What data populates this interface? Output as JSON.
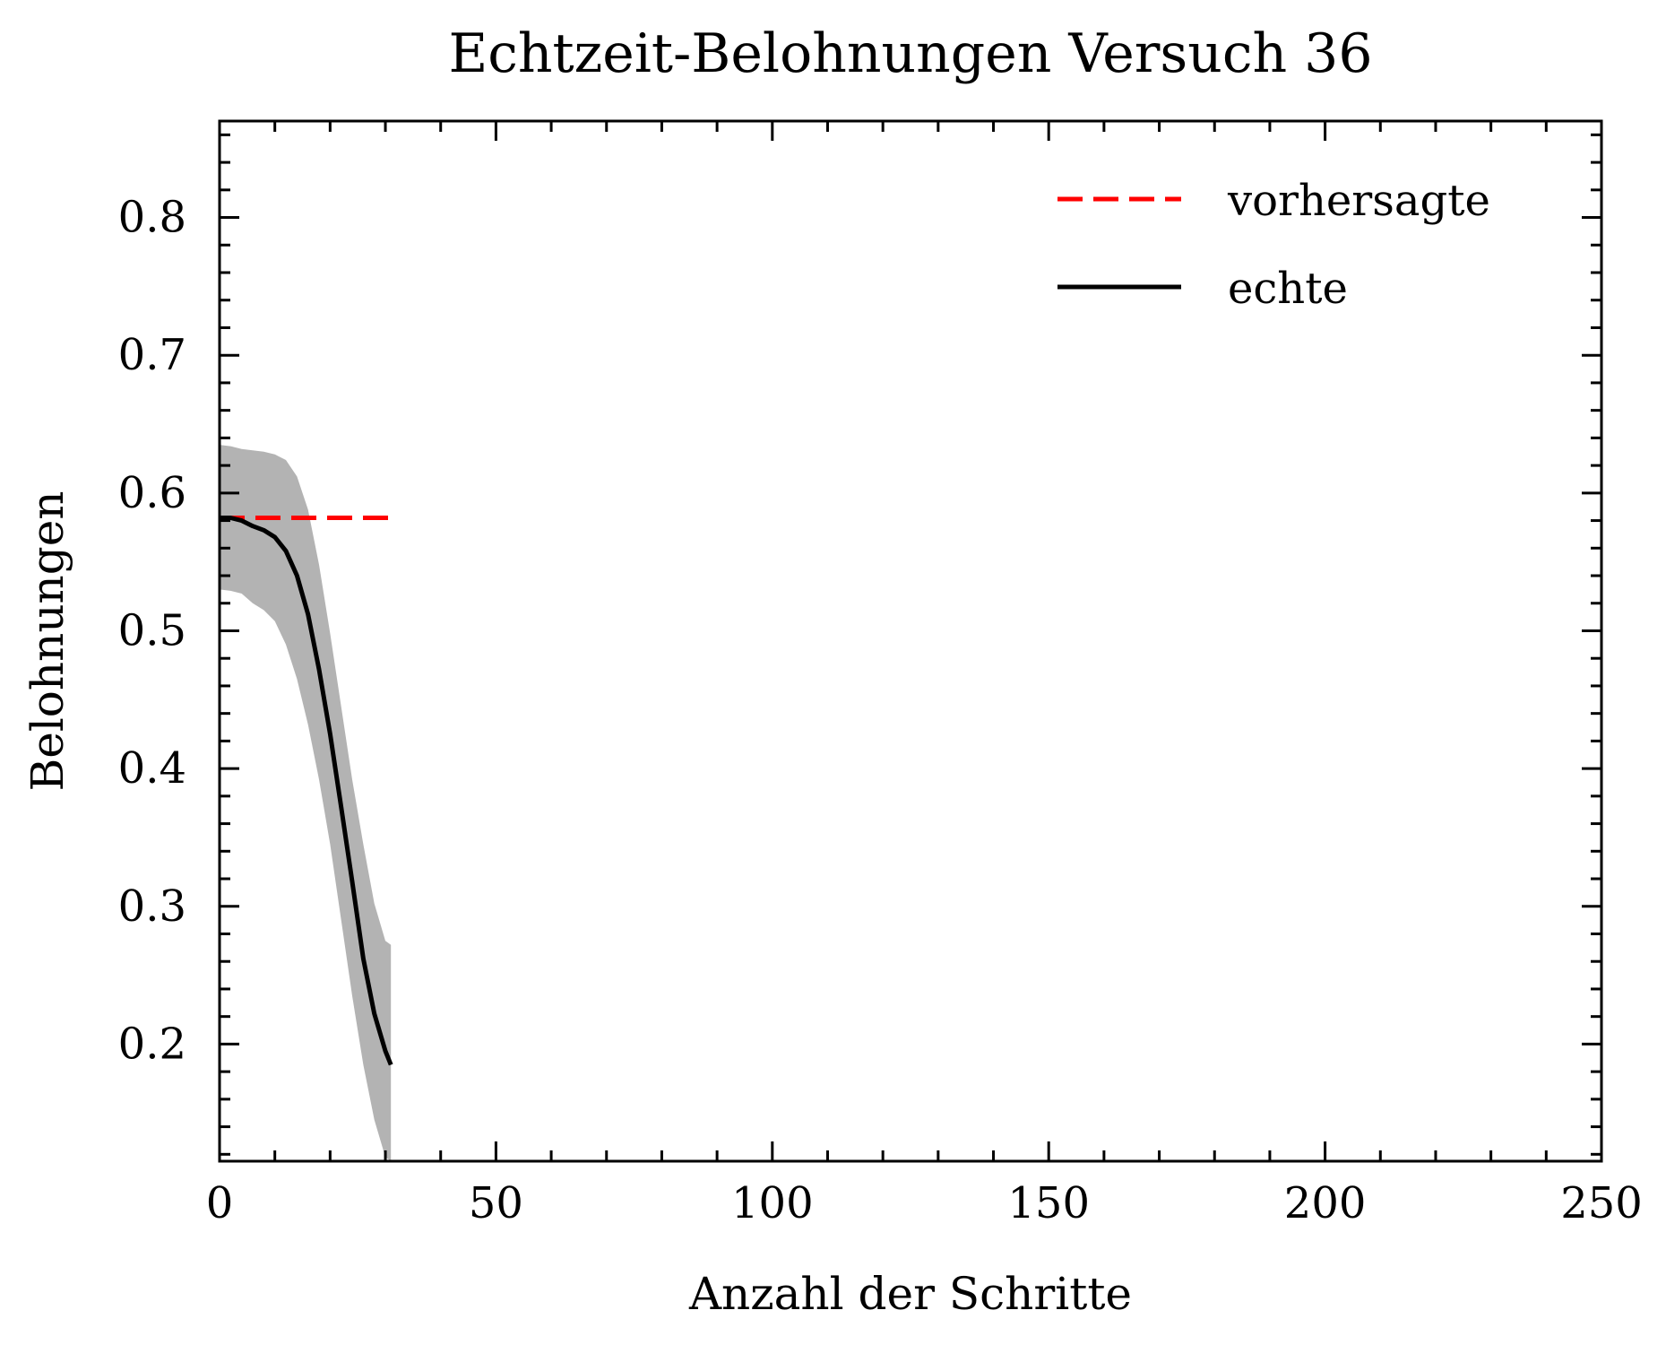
{
  "chart_data": {
    "type": "line",
    "title": "Echtzeit-Belohnungen Versuch 36",
    "xlabel": "Anzahl der Schritte",
    "ylabel": "Belohnungen",
    "xlim": [
      0,
      250
    ],
    "ylim": [
      0.115,
      0.87
    ],
    "xticks": [
      0,
      50,
      100,
      150,
      200,
      250
    ],
    "yticks": [
      0.2,
      0.3,
      0.4,
      0.5,
      0.6,
      0.7,
      0.8
    ],
    "xtick_labels": [
      "0",
      "50",
      "100",
      "150",
      "200",
      "250"
    ],
    "ytick_labels": [
      "0.2",
      "0.3",
      "0.4",
      "0.5",
      "0.6",
      "0.7",
      "0.8"
    ],
    "grid": false,
    "legend_position": "top-right",
    "series": [
      {
        "name": "vorhersagte",
        "style": "dashed",
        "color": "#ff0000",
        "x": [
          0,
          31
        ],
        "y": [
          0.582,
          0.582
        ]
      },
      {
        "name": "echte",
        "style": "solid",
        "color": "#000000",
        "x": [
          0,
          2,
          4,
          6,
          8,
          10,
          12,
          14,
          16,
          18,
          20,
          22,
          24,
          26,
          28,
          30,
          31
        ],
        "y": [
          0.582,
          0.582,
          0.58,
          0.576,
          0.573,
          0.568,
          0.558,
          0.54,
          0.512,
          0.472,
          0.425,
          0.372,
          0.318,
          0.262,
          0.222,
          0.195,
          0.185
        ]
      }
    ],
    "band": {
      "color": "#b3b3b3",
      "x": [
        0,
        2,
        4,
        6,
        8,
        10,
        12,
        14,
        16,
        18,
        20,
        22,
        24,
        26,
        28,
        30,
        31
      ],
      "upper": [
        0.635,
        0.634,
        0.632,
        0.631,
        0.63,
        0.628,
        0.624,
        0.612,
        0.588,
        0.548,
        0.498,
        0.445,
        0.392,
        0.345,
        0.302,
        0.275,
        0.272
      ],
      "lower": [
        0.53,
        0.529,
        0.527,
        0.52,
        0.515,
        0.507,
        0.49,
        0.465,
        0.432,
        0.392,
        0.345,
        0.29,
        0.235,
        0.185,
        0.145,
        0.118,
        0.115
      ]
    }
  }
}
